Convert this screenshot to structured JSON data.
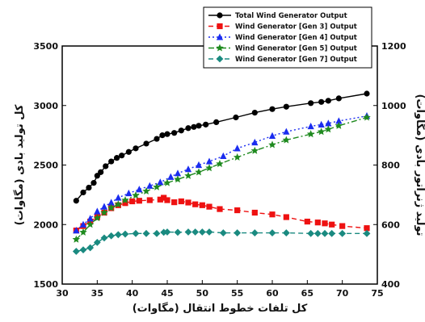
{
  "chart_data": {
    "type": "line",
    "xlabel": "کل تلفات خطوط انتقال (مگاوات)",
    "ylabel_left": "کل تولید بادی (مگاوات)",
    "ylabel_right": "تولید ژنراتور بادی (مگاوات)",
    "xlim": [
      30,
      75
    ],
    "ylim_left": [
      1500,
      3500
    ],
    "ylim_right": [
      400,
      1200
    ],
    "x_ticks": [
      "30",
      "35",
      "40",
      "45",
      "50",
      "55",
      "60",
      "65",
      "70",
      "75"
    ],
    "y_left_ticks": [
      "1500",
      "2000",
      "2500",
      "3000",
      "3500"
    ],
    "y_right_ticks": [
      "400",
      "600",
      "800",
      "1000",
      "1200"
    ],
    "grid": false,
    "legend_position": "top-right",
    "series": [
      {
        "name": "Total Wind Generator Output",
        "axis": "left",
        "color": "#000000",
        "marker": "circle",
        "line": "solid",
        "x": [
          32,
          33,
          33.8,
          34.5,
          35,
          35.5,
          36.2,
          37,
          37.8,
          38.5,
          39.5,
          40.5,
          42,
          43.5,
          44.3,
          45,
          46,
          47,
          48,
          48.8,
          49.5,
          50.5,
          52,
          54.8,
          57.5,
          60,
          62,
          65.5,
          67,
          68,
          69.5,
          73.5
        ],
        "y": [
          2200,
          2270,
          2310,
          2350,
          2410,
          2440,
          2490,
          2530,
          2560,
          2580,
          2610,
          2640,
          2680,
          2720,
          2750,
          2760,
          2770,
          2790,
          2810,
          2820,
          2830,
          2840,
          2860,
          2900,
          2940,
          2970,
          2990,
          3020,
          3030,
          3040,
          3060,
          3100
        ]
      },
      {
        "name": "Wind Generator [Gen 3] Output",
        "axis": "right",
        "color": "#ee1111",
        "marker": "square",
        "line": "dashed",
        "x": [
          32,
          33,
          34,
          35,
          36,
          37,
          38,
          39,
          40,
          41,
          42.5,
          44,
          44.5,
          45,
          46,
          47,
          48,
          49,
          50,
          51,
          52.5,
          55,
          57.5,
          60,
          62,
          65,
          66.5,
          67.5,
          68.5,
          70,
          73.5
        ],
        "y": [
          580,
          595,
          610,
          625,
          640,
          655,
          665,
          672,
          678,
          680,
          682,
          684,
          690,
          682,
          675,
          678,
          674,
          668,
          665,
          660,
          652,
          648,
          640,
          634,
          625,
          610,
          607,
          604,
          600,
          595,
          588
        ]
      },
      {
        "name": "Wind Generator [Gen 4] Output",
        "axis": "right",
        "color": "#1a2cf0",
        "marker": "triangle",
        "line": "dotted",
        "x": [
          32,
          33,
          34,
          35,
          36,
          37,
          38,
          39.5,
          41,
          42.5,
          44,
          45.5,
          46.5,
          48,
          49.5,
          51,
          53,
          55,
          57.5,
          60,
          62,
          65.5,
          67,
          68,
          69.5,
          73.5
        ],
        "y": [
          580,
          600,
          620,
          644,
          660,
          674,
          690,
          705,
          718,
          730,
          742,
          760,
          772,
          786,
          800,
          812,
          830,
          856,
          876,
          898,
          912,
          930,
          936,
          940,
          948,
          965
        ]
      },
      {
        "name": "Wind Generator [Gen 5] Output",
        "axis": "right",
        "color": "#1f8a1f",
        "marker": "star",
        "line": "dashdot",
        "x": [
          32,
          33,
          34,
          35,
          36,
          37,
          38,
          39,
          40.5,
          42,
          43.5,
          45,
          46.5,
          48,
          49.5,
          51,
          52.5,
          55,
          57.5,
          60,
          62,
          65.5,
          67,
          68,
          69.5,
          73.5
        ],
        "y": [
          550,
          574,
          600,
          622,
          640,
          656,
          668,
          682,
          698,
          712,
          726,
          740,
          752,
          764,
          776,
          790,
          804,
          826,
          848,
          868,
          884,
          904,
          912,
          920,
          932,
          960
        ]
      },
      {
        "name": "Wind Generator [Gen 7] Output",
        "axis": "right",
        "color": "#1a8a80",
        "marker": "diamond",
        "line": "dashed",
        "x": [
          32,
          33,
          34,
          35,
          36,
          37,
          38,
          39,
          40.5,
          42,
          43.5,
          44.5,
          45,
          46.5,
          48,
          49,
          50,
          51,
          53,
          55,
          57.5,
          60,
          62,
          65.5,
          66.5,
          67.5,
          68.5,
          70,
          73.5
        ],
        "y": [
          510,
          515,
          522,
          540,
          555,
          562,
          566,
          568,
          570,
          570,
          570,
          574,
          575,
          574,
          575,
          575,
          575,
          575,
          572,
          572,
          572,
          572,
          572,
          570,
          570,
          570,
          570,
          570,
          570
        ]
      }
    ]
  }
}
